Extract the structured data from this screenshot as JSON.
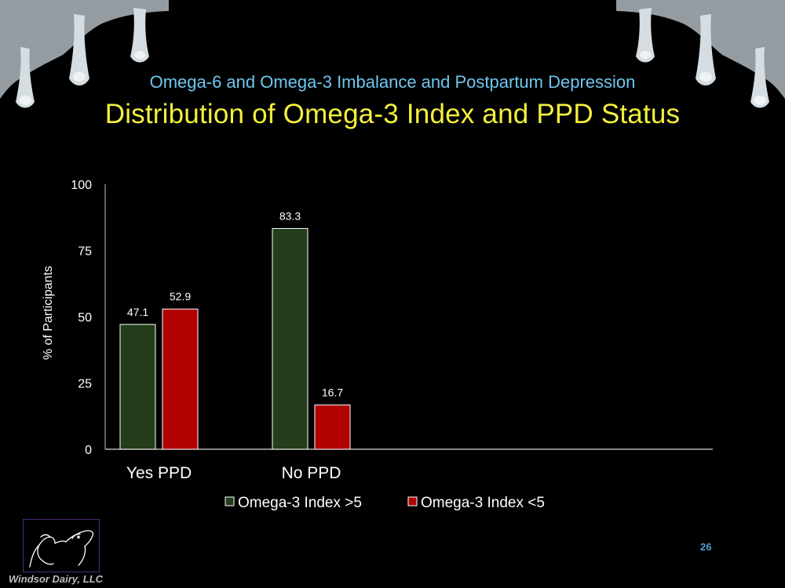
{
  "slide": {
    "subtitle": "Omega-6 and Omega-3 Imbalance and Postpartum Depression",
    "title": "Distribution of Omega-3 Index and PPD Status",
    "page_number": "26",
    "company": "Windsor Dairy, LLC"
  },
  "chart_data": {
    "type": "bar",
    "title": "",
    "xlabel": "",
    "ylabel": "% of Participants",
    "categories": [
      "Yes PPD",
      "No PPD"
    ],
    "series": [
      {
        "name": "Omega-3 Index >5",
        "values": [
          47.1,
          83.3
        ],
        "color": "#243d1a"
      },
      {
        "name": "Omega-3 Index <5",
        "values": [
          52.9,
          16.7
        ],
        "color": "#b00000"
      }
    ],
    "ylim": [
      0,
      100
    ],
    "yticks": [
      0,
      25,
      50,
      75,
      100
    ],
    "grid": false,
    "legend": "bottom-center",
    "data_labels": true
  },
  "colors": {
    "background": "#000000",
    "subtitle": "#6fc6ee",
    "title": "#f4ef3c",
    "page_number": "#4fa0d8"
  }
}
